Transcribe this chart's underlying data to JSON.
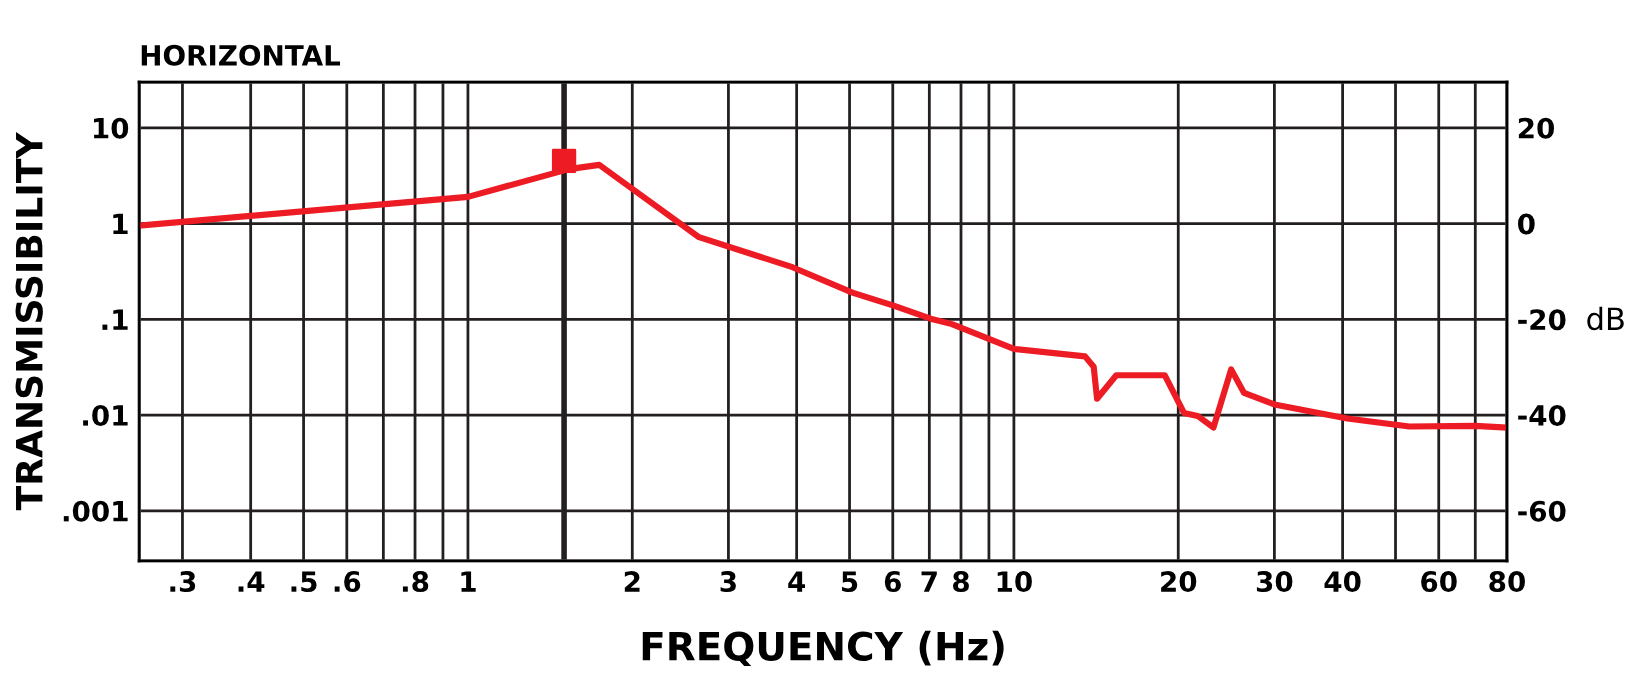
{
  "chart_data": {
    "type": "line",
    "title": "HORIZONTAL",
    "xlabel": "FREQUENCY (Hz)",
    "ylabel": "TRANSMISSIBILITY",
    "y2label": "dB",
    "log": "xy",
    "xlim": [
      0.25,
      80
    ],
    "xticks": [
      {
        "value": 0.3,
        "label": ".3"
      },
      {
        "value": 0.4,
        "label": ".4"
      },
      {
        "value": 0.5,
        "label": ".5"
      },
      {
        "value": 0.6,
        "label": ".6"
      },
      {
        "value": 0.7,
        "label": null
      },
      {
        "value": 0.8,
        "label": ".8"
      },
      {
        "value": 0.9,
        "label": null
      },
      1,
      2,
      3,
      4,
      5,
      6,
      7,
      8,
      {
        "value": 9,
        "label": null
      },
      10,
      20,
      30,
      40,
      {
        "value": 50,
        "label": null
      },
      60,
      {
        "value": 70,
        "label": null
      },
      80
    ],
    "ylim": [
      0.0003,
      30
    ],
    "yticks": [
      {
        "value": 0.001,
        "label": ".001"
      },
      {
        "value": 0.01,
        "label": ".01"
      },
      {
        "value": 0.1,
        "label": ".1"
      },
      1,
      10
    ],
    "y2lim": [
      -70.46,
      29.54
    ],
    "y2ticks": [
      -60,
      -40,
      -20,
      0,
      20
    ],
    "grid": true,
    "ref_lines": [
      {
        "axis": "x",
        "value": 1.5,
        "color": "#231f20"
      }
    ],
    "series": [
      {
        "color": "#ed1c24",
        "x": [
          0.25,
          1,
          1.53,
          1.74,
          2.65,
          3.93,
          5.06,
          6.04,
          7.1,
          7.7,
          10,
          13.5,
          14.0,
          14.2,
          15.4,
          18.9,
          20.5,
          21.7,
          23.2,
          25.0,
          26.4,
          30,
          40.8,
          53,
          70,
          80
        ],
        "values": [
          0.95,
          1.9,
          3.7,
          4.1,
          0.72,
          0.35,
          0.19,
          0.138,
          0.1,
          0.089,
          0.049,
          0.041,
          0.032,
          0.0148,
          0.026,
          0.026,
          0.0105,
          0.0098,
          0.0074,
          0.03,
          0.017,
          0.0129,
          0.0092,
          0.0076,
          0.0077,
          0.0074
        ]
      },
      {
        "type": "scatter",
        "marker": "square",
        "color": "#ed1c24",
        "x": [
          1.5
        ],
        "values": [
          4.5
        ]
      }
    ]
  }
}
